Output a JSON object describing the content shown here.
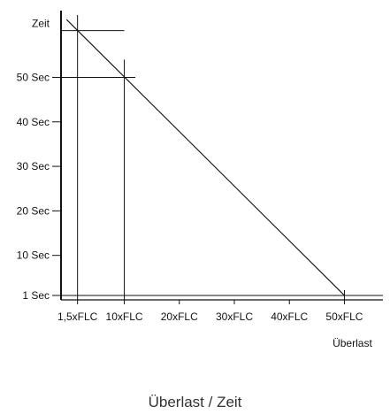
{
  "chart_data": {
    "type": "line",
    "title": "",
    "caption": "Überlast / Zeit",
    "xlabel": "Überlast",
    "ylabel": "Zeit",
    "x_ticks": [
      {
        "value": 1.5,
        "label": "1,5xFLC"
      },
      {
        "value": 10,
        "label": "10xFLC"
      },
      {
        "value": 20,
        "label": "20xFLC"
      },
      {
        "value": 30,
        "label": "30xFLC"
      },
      {
        "value": 40,
        "label": "40xFLC"
      },
      {
        "value": 50,
        "label": "50xFLC"
      }
    ],
    "y_ticks": [
      {
        "value": 1,
        "label": "1 Sec"
      },
      {
        "value": 10,
        "label": "10 Sec"
      },
      {
        "value": 20,
        "label": "20 Sec"
      },
      {
        "value": 30,
        "label": "30 Sec"
      },
      {
        "value": 40,
        "label": "40 Sec"
      },
      {
        "value": 50,
        "label": "50 Sec"
      }
    ],
    "series": [
      {
        "values": [
          [
            -0.5,
            63
          ],
          [
            50,
            1
          ]
        ],
        "color": "#111111"
      }
    ],
    "reference_lines": {
      "vertical": [
        {
          "x": 1.5,
          "y_from": 0,
          "y_to": 64
        },
        {
          "x": 10,
          "y_from": 0,
          "y_to": 54
        }
      ],
      "horizontal": [
        {
          "y": 60.5,
          "x_from": -1.5,
          "x_to": 10
        },
        {
          "y": 50,
          "x_from": -1.5,
          "x_to": 12
        },
        {
          "y": 1,
          "x_from": -1.5,
          "x_to": 57
        }
      ]
    },
    "xlim": [
      -1.5,
      57
    ],
    "ylim": [
      0,
      65
    ],
    "grid": false,
    "legend": "none"
  }
}
